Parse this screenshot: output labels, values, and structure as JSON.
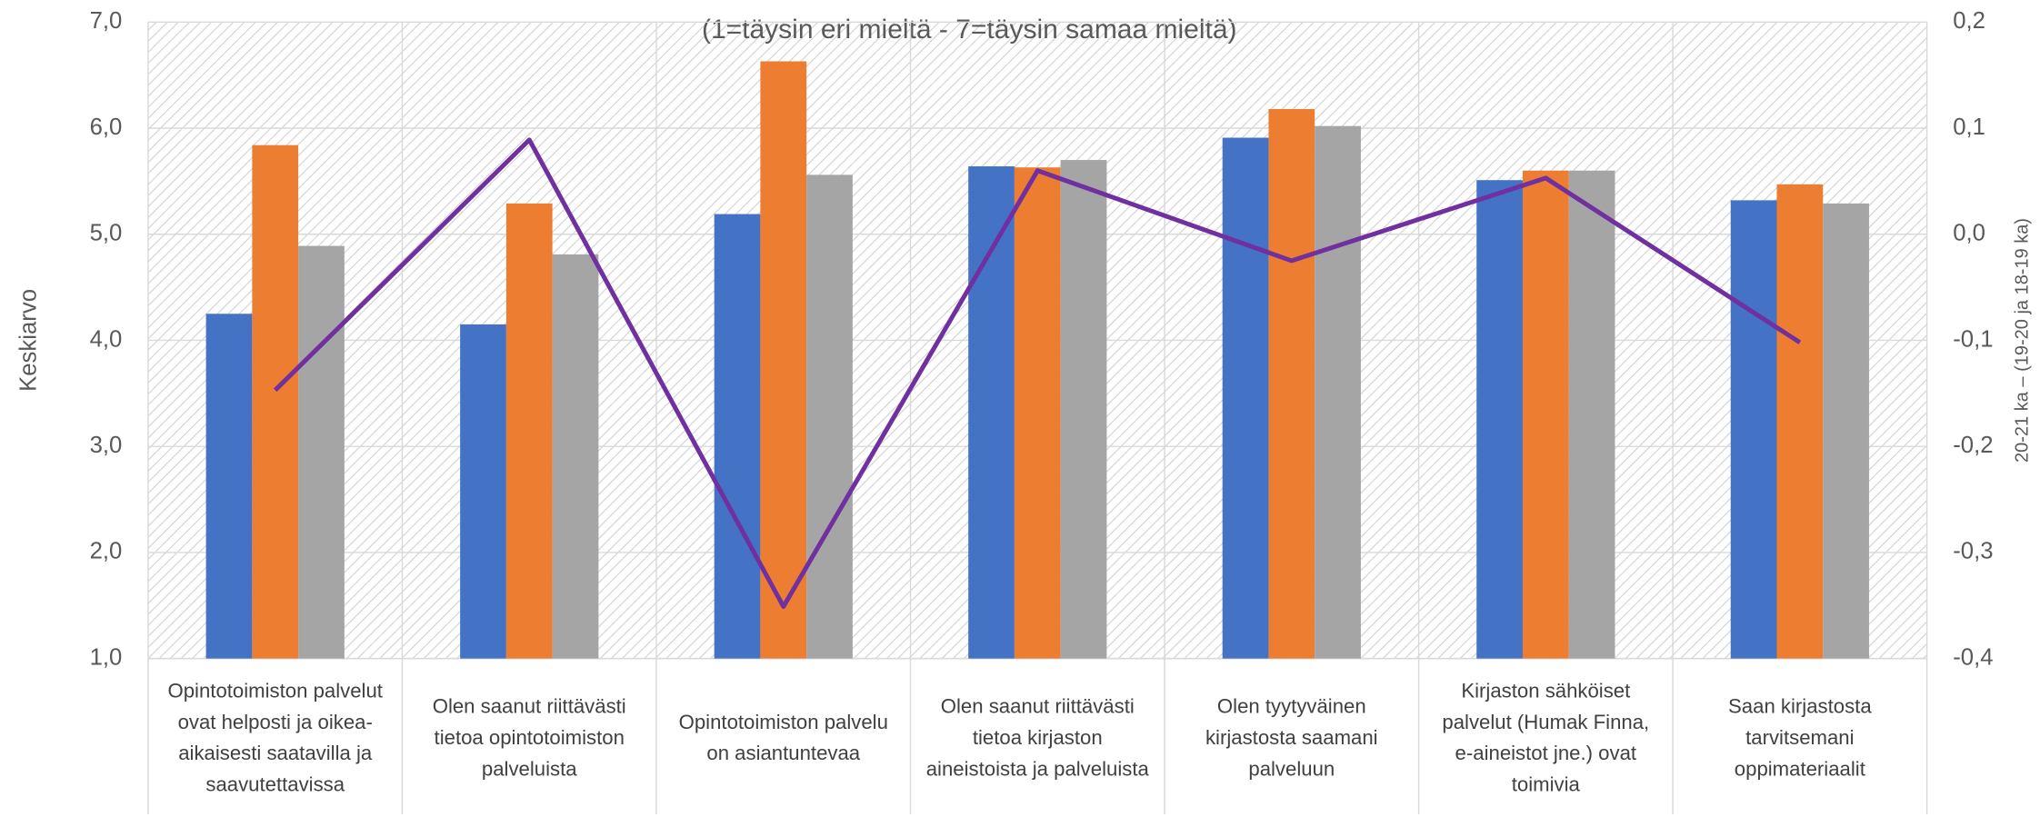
{
  "chart_data": {
    "type": "bar",
    "subtitle": "(1=täysin eri mieltä - 7=täysin samaa mieltä)",
    "y_label": "Keskiarvo",
    "y2_label": "20-21 ka – (19-20 ja 18-19 ka)",
    "categories": [
      "Opintotoimiston palvelut ovat helposti ja oikea-aikaisesti saatavilla ja saavutettavissa",
      "Olen saanut riittävästi tietoa opintotoimiston palveluista",
      "Opintotoimiston palvelu on asiantuntevaa",
      "Olen saanut riittävästi tietoa kirjaston aineistoista ja palveluista",
      "Olen tyytyväinen kirjastosta saamani palveluun",
      "Kirjaston sähköiset palvelut (Humak Finna, e-aineistot jne.) ovat toimivia",
      "Saan kirjastosta tarvitsemani oppimateriaalit"
    ],
    "series": [
      {
        "type": "bar",
        "color": "#4472c4",
        "values": [
          4.25,
          4.15,
          5.19,
          5.64,
          5.91,
          5.51,
          5.32
        ]
      },
      {
        "type": "bar",
        "color": "#ed7d31",
        "values": [
          5.84,
          5.29,
          6.63,
          5.63,
          6.18,
          5.6,
          5.47
        ]
      },
      {
        "type": "bar",
        "color": "#a5a5a5",
        "values": [
          4.89,
          4.81,
          5.56,
          5.7,
          6.02,
          5.6,
          5.29
        ]
      },
      {
        "type": "line",
        "axis": "y2",
        "color": "#7030a0",
        "values": [
          -0.147,
          0.089,
          -0.351,
          0.06,
          -0.025,
          0.053,
          -0.102
        ]
      }
    ],
    "ylim": [
      1,
      7
    ],
    "yticks": [
      {
        "value": 1,
        "label": "1,0"
      },
      {
        "value": 2,
        "label": "2,0"
      },
      {
        "value": 3,
        "label": "3,0"
      },
      {
        "value": 4,
        "label": "4,0"
      },
      {
        "value": 5,
        "label": "5,0"
      },
      {
        "value": 6,
        "label": "6,0"
      },
      {
        "value": 7,
        "label": "7,0"
      }
    ],
    "y2lim": [
      -0.4,
      0.2
    ],
    "y2ticks": [
      {
        "value": -0.4,
        "label": "-0,4"
      },
      {
        "value": -0.3,
        "label": "-0,3"
      },
      {
        "value": -0.2,
        "label": "-0,2"
      },
      {
        "value": -0.1,
        "label": "-0,1"
      },
      {
        "value": 0,
        "label": "0,0"
      },
      {
        "value": 0.1,
        "label": "0,1"
      },
      {
        "value": 0.2,
        "label": "0,2"
      }
    ],
    "grid": true
  }
}
